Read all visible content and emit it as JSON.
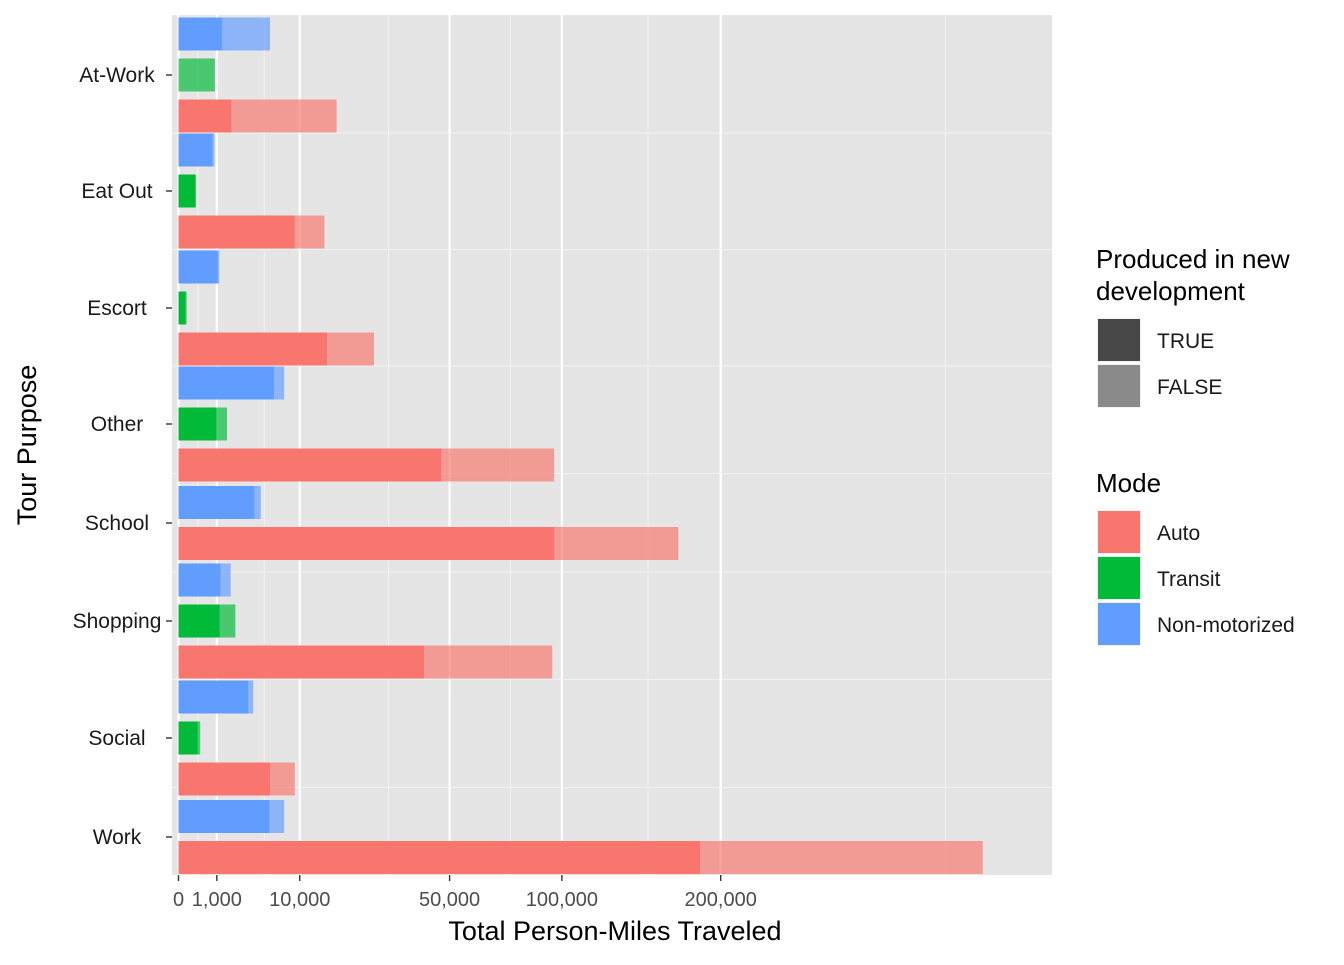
{
  "chart_data": {
    "type": "bar",
    "orientation": "horizontal",
    "x_scale": "sqrt",
    "title": "",
    "xlabel": "Total Person-Miles Traveled",
    "ylabel": "Tour Purpose",
    "xlim": [
      0,
      470000
    ],
    "x_ticks": [
      {
        "value": 0,
        "label": "0"
      },
      {
        "value": 1000,
        "label": "1,000"
      },
      {
        "value": 10000,
        "label": "10,000"
      },
      {
        "value": 50000,
        "label": "50,000"
      },
      {
        "value": 100000,
        "label": "100,000"
      },
      {
        "value": 200000,
        "label": "200,000"
      }
    ],
    "x_minor_gridlines": [
      250,
      5000,
      30000,
      75000,
      150000,
      400000
    ],
    "grid": true,
    "legend_placement": "right",
    "categories": [
      "At-Work",
      "Eat Out",
      "Escort",
      "Other",
      "School",
      "Shopping",
      "Social",
      "Work"
    ],
    "series": [
      {
        "name": "Auto",
        "color": "#F8766D",
        "true_values": [
          1900,
          9200,
          15000,
          47000,
          96000,
          41000,
          5700,
          185000
        ],
        "total_values": [
          17000,
          14500,
          26000,
          96000,
          170000,
          95000,
          9200,
          440000
        ]
      },
      {
        "name": "Transit",
        "color": "#00BA38",
        "true_values": [
          0,
          200,
          32,
          980,
          0,
          1150,
          250,
          0
        ],
        "total_values": [
          900,
          200,
          45,
          1600,
          0,
          2200,
          320,
          0
        ]
      },
      {
        "name": "Non-motorized",
        "color": "#619CFF",
        "true_values": [
          1300,
          780,
          1050,
          6200,
          3900,
          1200,
          3300,
          5600
        ],
        "total_values": [
          5700,
          880,
          1130,
          7600,
          4600,
          1850,
          3800,
          7600
        ]
      }
    ],
    "legend_fill": {
      "title": "Produced in new development",
      "entries": [
        {
          "label": "TRUE",
          "color": "#474747"
        },
        {
          "label": "FALSE",
          "color": "#8a8a8a"
        }
      ]
    },
    "legend_mode": {
      "title": "Mode",
      "entries": [
        {
          "label": "Auto",
          "color": "#F8766D"
        },
        {
          "label": "Transit",
          "color": "#00BA38"
        },
        {
          "label": "Non-motorized",
          "color": "#619CFF"
        }
      ]
    }
  }
}
